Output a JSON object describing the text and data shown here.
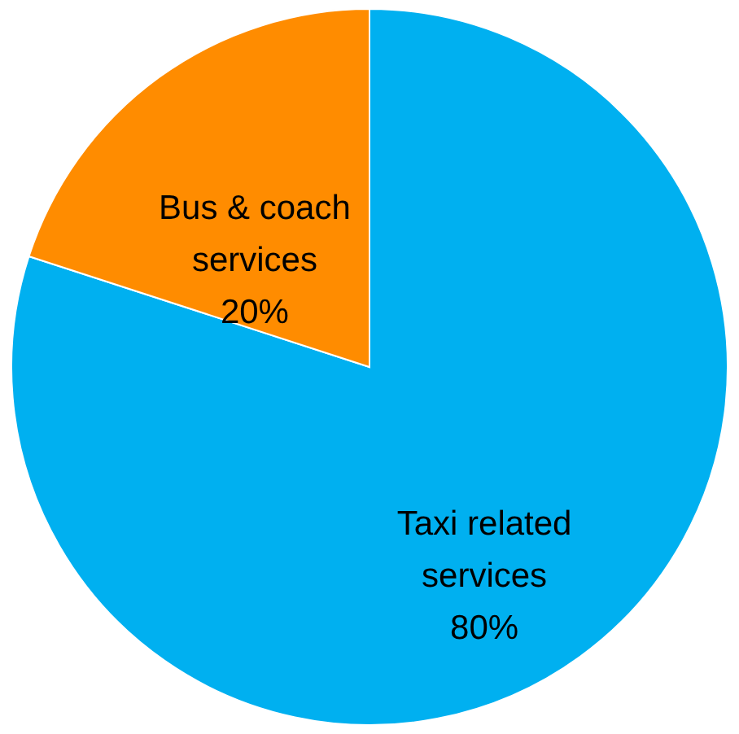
{
  "chart_data": {
    "type": "pie",
    "categories": [
      "Taxi related services",
      "Bus & coach services"
    ],
    "values": [
      80,
      20
    ],
    "colors": [
      "#00b0f0",
      "#ff8c00"
    ],
    "value_labels": [
      "80%",
      "20%"
    ]
  }
}
